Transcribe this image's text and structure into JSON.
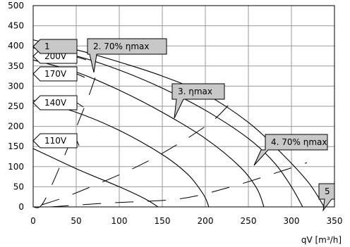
{
  "chart_data": {
    "type": "line",
    "xlabel": "qV [m³/h]",
    "ylabel": "",
    "xlim": [
      0,
      350
    ],
    "ylim": [
      0,
      500
    ],
    "xticks": [
      0,
      50,
      100,
      150,
      200,
      250,
      300,
      350
    ],
    "yticks": [
      0,
      50,
      100,
      150,
      200,
      250,
      300,
      350,
      400,
      450,
      500
    ],
    "grid": true,
    "series": [
      {
        "name": "1",
        "points": [
          [
            0,
            415
          ],
          [
            30,
            400
          ],
          [
            60,
            385
          ],
          [
            100,
            360
          ],
          [
            150,
            325
          ],
          [
            200,
            280
          ],
          [
            250,
            210
          ],
          [
            290,
            130
          ],
          [
            320,
            60
          ],
          [
            338,
            0
          ]
        ]
      },
      {
        "name": "200V",
        "points": [
          [
            0,
            395
          ],
          [
            50,
            375
          ],
          [
            100,
            340
          ],
          [
            150,
            295
          ],
          [
            200,
            240
          ],
          [
            250,
            170
          ],
          [
            280,
            110
          ],
          [
            300,
            50
          ],
          [
            313,
            0
          ]
        ]
      },
      {
        "name": "170V",
        "points": [
          [
            0,
            365
          ],
          [
            50,
            335
          ],
          [
            100,
            290
          ],
          [
            150,
            235
          ],
          [
            200,
            170
          ],
          [
            240,
            100
          ],
          [
            260,
            45
          ],
          [
            268,
            0
          ]
        ]
      },
      {
        "name": "140V",
        "points": [
          [
            0,
            265
          ],
          [
            50,
            235
          ],
          [
            100,
            190
          ],
          [
            150,
            130
          ],
          [
            180,
            80
          ],
          [
            198,
            30
          ],
          [
            204,
            0
          ]
        ]
      },
      {
        "name": "110V",
        "points": [
          [
            0,
            145
          ],
          [
            50,
            95
          ],
          [
            100,
            50
          ],
          [
            130,
            20
          ],
          [
            145,
            0
          ]
        ]
      }
    ],
    "efficiency_lines": [
      {
        "name": "2. 70% ηmax",
        "points": [
          [
            0,
            0
          ],
          [
            10,
            5
          ],
          [
            27,
            80
          ],
          [
            60,
            250
          ],
          [
            75,
            340
          ]
        ]
      },
      {
        "name": "3. ηmax",
        "points": [
          [
            10,
            5
          ],
          [
            50,
            35
          ],
          [
            130,
            110
          ],
          [
            200,
            200
          ],
          [
            230,
            260
          ]
        ]
      },
      {
        "name": "4. 70% ηmax",
        "points": [
          [
            20,
            0
          ],
          [
            90,
            10
          ],
          [
            170,
            20
          ],
          [
            230,
            50
          ],
          [
            290,
            90
          ],
          [
            318,
            110
          ]
        ]
      }
    ],
    "labels": [
      {
        "id": "1",
        "text": "1",
        "style": "grey"
      },
      {
        "id": "200V",
        "text": "200V",
        "style": "white"
      },
      {
        "id": "170V",
        "text": "170V",
        "style": "white"
      },
      {
        "id": "140V",
        "text": "140V",
        "style": "white"
      },
      {
        "id": "110V",
        "text": "110V",
        "style": "white"
      },
      {
        "id": "eff2",
        "text": "2. 70% ηmax",
        "style": "grey"
      },
      {
        "id": "eff3",
        "text": "3. ηmax",
        "style": "grey"
      },
      {
        "id": "eff4",
        "text": "4. 70% ηmax",
        "style": "grey"
      },
      {
        "id": "5",
        "text": "5",
        "style": "grey"
      }
    ]
  }
}
